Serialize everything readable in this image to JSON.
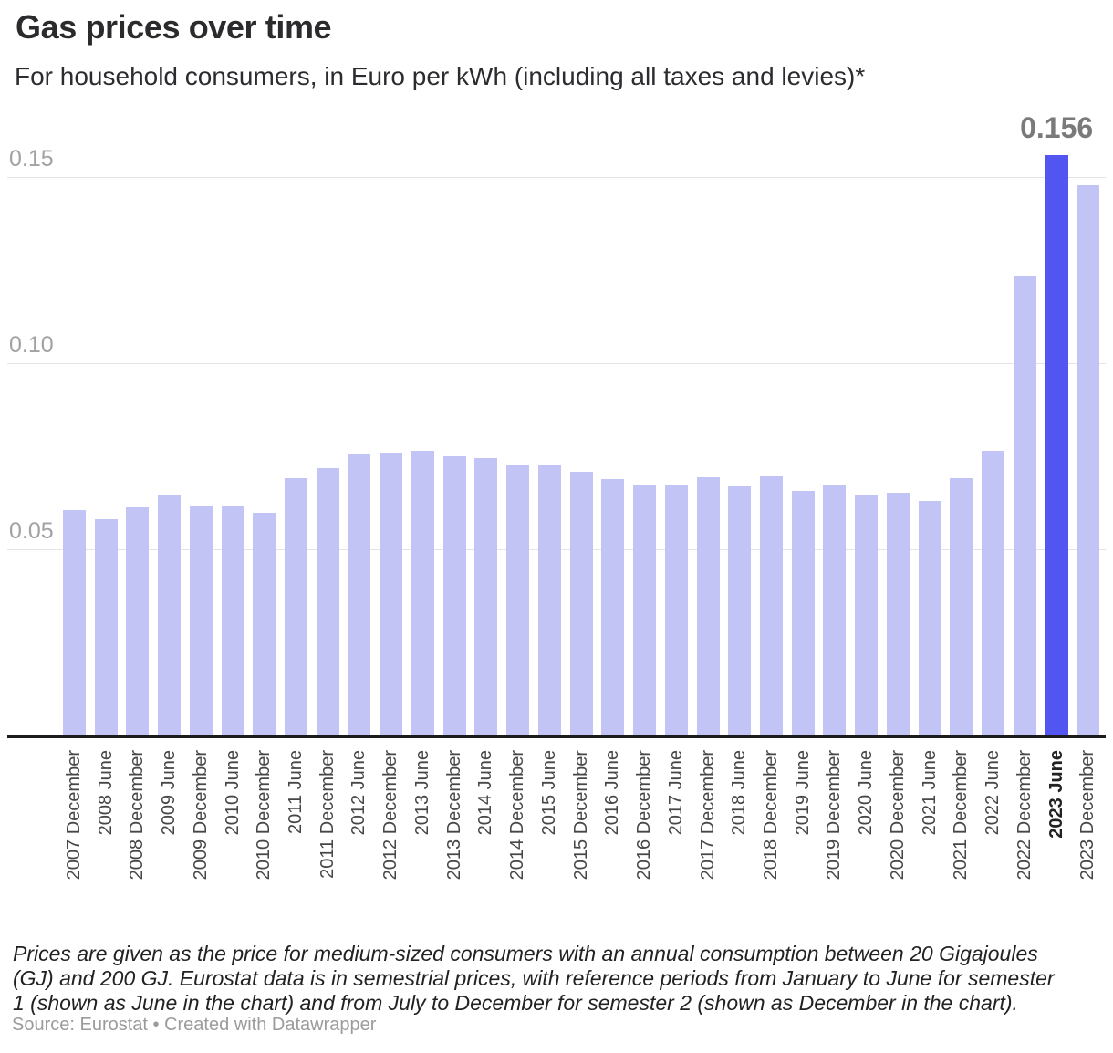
{
  "header": {
    "title": "Gas prices over time",
    "subtitle": "For household consumers, in Euro per kWh (including all taxes and levies)*"
  },
  "chart_data": {
    "type": "bar",
    "title": "Gas prices over time",
    "subtitle": "For household consumers, in Euro per kWh (including all taxes and levies)*",
    "unit": "Euro per kWh",
    "categories": [
      "2007 December",
      "2008 June",
      "2008 December",
      "2009 June",
      "2009 December",
      "2010 June",
      "2010 December",
      "2011 June",
      "2011 December",
      "2012 June",
      "2012 December",
      "2013 June",
      "2013 December",
      "2014 June",
      "2014 December",
      "2015 June",
      "2015 December",
      "2016 June",
      "2016 December",
      "2017 June",
      "2017 December",
      "2018 June",
      "2018 December",
      "2019 June",
      "2019 December",
      "2020 June",
      "2020 December",
      "2021 June",
      "2021 December",
      "2022 June",
      "2022 December",
      "2023 June",
      "2023 December"
    ],
    "values": [
      0.0606,
      0.0582,
      0.0613,
      0.0645,
      0.0615,
      0.0618,
      0.0599,
      0.0692,
      0.0719,
      0.0756,
      0.0761,
      0.0764,
      0.075,
      0.0744,
      0.0725,
      0.0725,
      0.0709,
      0.0688,
      0.0672,
      0.0672,
      0.0694,
      0.0668,
      0.0697,
      0.0656,
      0.0672,
      0.0644,
      0.0651,
      0.0631,
      0.0692,
      0.0765,
      0.1235,
      0.156,
      0.1479
    ],
    "highlight_index": 31,
    "highlight_label": "0.156",
    "y_ticks": [
      "0.05",
      "0.10",
      "0.15"
    ],
    "y_tick_values": [
      0.05,
      0.1,
      0.15
    ],
    "ylim": [
      0,
      0.16
    ],
    "xlabel": "",
    "ylabel": "",
    "grid": true,
    "legend": false,
    "bar_color": "#c3c4f6",
    "highlight_color": "#5255ef",
    "gridline_color": "#e4e4e4",
    "axis_color": "#1c1c1e"
  },
  "footer": {
    "footnote_lines": [
      "Prices are given as the price for medium-sized consumers with an annual consumption between 20 Gigajoules",
      "(GJ) and 200 GJ. Eurostat data is in semestrial prices, with reference periods from January to June for semester",
      "1 (shown as June in the chart) and from July to December for semester 2 (shown as December in the chart)."
    ],
    "source": "Source: Eurostat • Created with Datawrapper"
  }
}
